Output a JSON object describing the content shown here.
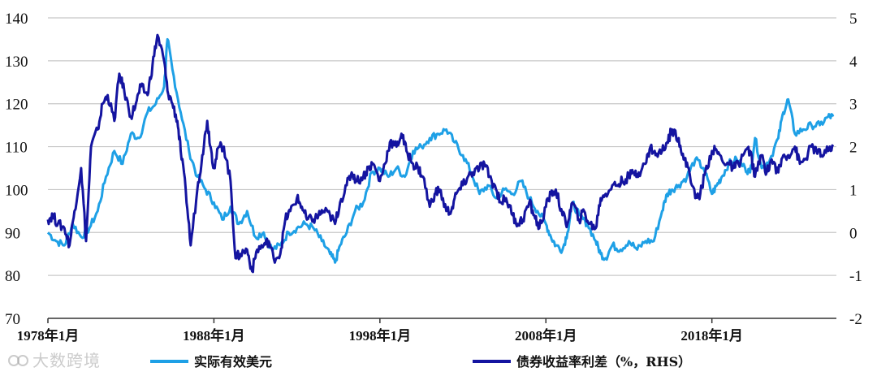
{
  "chart_data": {
    "type": "line",
    "left_axis": {
      "ticks": [
        "140",
        "130",
        "120",
        "110",
        "100",
        "90",
        "80",
        "70"
      ],
      "ylim": [
        70,
        140
      ]
    },
    "right_axis": {
      "ticks": [
        "5",
        "4",
        "3",
        "2",
        "1",
        "0",
        "-1",
        "-2"
      ],
      "ylim": [
        -2,
        5
      ]
    },
    "x_ticks": [
      "1978年1月",
      "1988年1月",
      "1998年1月",
      "2008年1月",
      "2018年1月"
    ],
    "xlim": [
      1978.0,
      2025.5
    ],
    "grid": true,
    "legend_position": "bottom",
    "series": [
      {
        "name": "实际有效美元",
        "axis": "left",
        "color": "#1ea0e6",
        "x": [
          1978.0,
          1978.5,
          1979.0,
          1979.5,
          1980.0,
          1980.5,
          1981.0,
          1981.5,
          1982.0,
          1982.5,
          1983.0,
          1983.5,
          1984.0,
          1984.5,
          1985.0,
          1985.2,
          1985.5,
          1986.0,
          1986.5,
          1987.0,
          1987.5,
          1988.0,
          1988.5,
          1989.0,
          1989.5,
          1990.0,
          1990.5,
          1991.0,
          1991.5,
          1992.0,
          1992.5,
          1993.0,
          1993.5,
          1994.0,
          1994.5,
          1995.0,
          1995.3,
          1995.6,
          1996.0,
          1996.5,
          1997.0,
          1997.5,
          1998.0,
          1998.5,
          1999.0,
          1999.5,
          2000.0,
          2000.5,
          2001.0,
          2001.5,
          2002.0,
          2002.5,
          2003.0,
          2003.5,
          2004.0,
          2004.5,
          2005.0,
          2005.5,
          2006.0,
          2006.5,
          2007.0,
          2007.5,
          2008.0,
          2008.3,
          2008.6,
          2009.0,
          2009.3,
          2009.6,
          2010.0,
          2010.5,
          2011.0,
          2011.3,
          2011.6,
          2012.0,
          2012.5,
          2013.0,
          2013.5,
          2014.0,
          2014.5,
          2015.0,
          2015.3,
          2015.6,
          2016.0,
          2016.5,
          2017.0,
          2017.5,
          2018.0,
          2018.3,
          2018.6,
          2019.0,
          2019.5,
          2020.0,
          2020.3,
          2020.6,
          2021.0,
          2021.5,
          2022.0,
          2022.3,
          2022.6,
          2023.0,
          2023.5,
          2024.0,
          2024.5,
          2025.0,
          2025.3
        ],
        "values": [
          90,
          88,
          87,
          92,
          89,
          91,
          95,
          103,
          109,
          106,
          113,
          112,
          118,
          120,
          124,
          135,
          128,
          118,
          109,
          103,
          100,
          97,
          93,
          96,
          92,
          95,
          89,
          90,
          86,
          87,
          90,
          91,
          92,
          91,
          88,
          85,
          83,
          87,
          90,
          95,
          97,
          104,
          105,
          103,
          105,
          103,
          109,
          110,
          112,
          113,
          114,
          111,
          108,
          104,
          99,
          101,
          98,
          100,
          99,
          102,
          98,
          95,
          92,
          89,
          87,
          86,
          90,
          97,
          94,
          92,
          88,
          85,
          84,
          87,
          86,
          88,
          86,
          88,
          88,
          95,
          99,
          100,
          101,
          103,
          107,
          105,
          99,
          101,
          103,
          106,
          107,
          105,
          104,
          112,
          105,
          107,
          112,
          118,
          121,
          113,
          114,
          115,
          115,
          117,
          117
        ]
      },
      {
        "name": "债券收益率利差（%，RHS）",
        "axis": "right",
        "color": "#1414a0",
        "x": [
          1978.0,
          1978.3,
          1978.6,
          1979.0,
          1979.3,
          1979.6,
          1980.0,
          1980.3,
          1980.6,
          1981.0,
          1981.3,
          1981.6,
          1982.0,
          1982.3,
          1982.6,
          1983.0,
          1983.3,
          1983.6,
          1984.0,
          1984.3,
          1984.6,
          1985.0,
          1985.2,
          1985.5,
          1985.8,
          1986.0,
          1986.3,
          1986.6,
          1987.0,
          1987.3,
          1987.6,
          1987.8,
          1988.0,
          1988.3,
          1988.6,
          1989.0,
          1989.3,
          1989.6,
          1990.0,
          1990.3,
          1990.6,
          1991.0,
          1991.3,
          1991.6,
          1992.0,
          1992.3,
          1992.6,
          1993.0,
          1993.3,
          1993.6,
          1994.0,
          1994.3,
          1994.6,
          1995.0,
          1995.3,
          1995.6,
          1996.0,
          1996.3,
          1996.6,
          1997.0,
          1997.3,
          1997.6,
          1998.0,
          1998.3,
          1998.6,
          1999.0,
          1999.3,
          1999.6,
          2000.0,
          2000.3,
          2000.6,
          2001.0,
          2001.3,
          2001.6,
          2002.0,
          2002.3,
          2002.6,
          2003.0,
          2003.3,
          2003.6,
          2004.0,
          2004.3,
          2004.6,
          2005.0,
          2005.3,
          2005.6,
          2006.0,
          2006.3,
          2006.6,
          2007.0,
          2007.3,
          2007.6,
          2008.0,
          2008.3,
          2008.6,
          2009.0,
          2009.3,
          2009.6,
          2010.0,
          2010.3,
          2010.6,
          2011.0,
          2011.3,
          2011.6,
          2012.0,
          2012.3,
          2012.6,
          2013.0,
          2013.3,
          2013.6,
          2014.0,
          2014.3,
          2014.6,
          2015.0,
          2015.3,
          2015.6,
          2016.0,
          2016.3,
          2016.6,
          2017.0,
          2017.3,
          2017.6,
          2018.0,
          2018.3,
          2018.6,
          2019.0,
          2019.3,
          2019.6,
          2020.0,
          2020.3,
          2020.6,
          2021.0,
          2021.3,
          2021.6,
          2022.0,
          2022.3,
          2022.6,
          2023.0,
          2023.3,
          2023.6,
          2024.0,
          2024.3,
          2024.6,
          2025.0,
          2025.3
        ],
        "values": [
          0.3,
          0.4,
          0.2,
          0.1,
          -0.3,
          0.5,
          1.5,
          -0.2,
          2.0,
          2.4,
          3.0,
          3.2,
          2.6,
          3.7,
          3.3,
          2.7,
          3.0,
          3.4,
          3.2,
          3.9,
          4.6,
          4.0,
          3.3,
          3.0,
          2.6,
          1.9,
          1.0,
          -0.3,
          1.0,
          1.8,
          2.6,
          2.0,
          1.5,
          2.0,
          2.0,
          1.2,
          -0.6,
          -0.5,
          -0.4,
          -0.9,
          -0.4,
          -0.3,
          -0.2,
          -0.6,
          -0.5,
          0.3,
          0.5,
          0.8,
          0.6,
          0.3,
          0.3,
          0.4,
          0.5,
          0.4,
          0.2,
          0.7,
          1.1,
          1.4,
          1.2,
          1.3,
          1.5,
          1.6,
          1.2,
          1.6,
          2.1,
          2.0,
          2.3,
          1.9,
          1.6,
          1.5,
          1.3,
          0.6,
          0.9,
          1.0,
          0.5,
          0.5,
          0.9,
          1.1,
          1.3,
          1.4,
          1.5,
          1.6,
          1.3,
          1.0,
          0.7,
          0.8,
          0.4,
          0.2,
          0.3,
          0.7,
          0.4,
          0.1,
          0.6,
          0.9,
          1.0,
          0.4,
          0.2,
          0.7,
          0.3,
          0.5,
          0.2,
          0.1,
          0.8,
          0.9,
          1.1,
          1.1,
          1.2,
          1.3,
          1.4,
          1.4,
          1.6,
          2.0,
          1.8,
          1.9,
          2.1,
          2.4,
          2.2,
          1.7,
          1.5,
          0.8,
          0.9,
          1.4,
          1.9,
          1.9,
          1.7,
          1.6,
          1.5,
          1.6,
          1.9,
          1.9,
          1.3,
          1.8,
          1.4,
          1.7,
          1.4,
          1.8,
          1.8,
          2.0,
          1.6,
          1.7,
          2.0,
          1.9,
          1.8,
          1.9,
          2.0
        ]
      }
    ]
  },
  "watermark": "大数跨境"
}
